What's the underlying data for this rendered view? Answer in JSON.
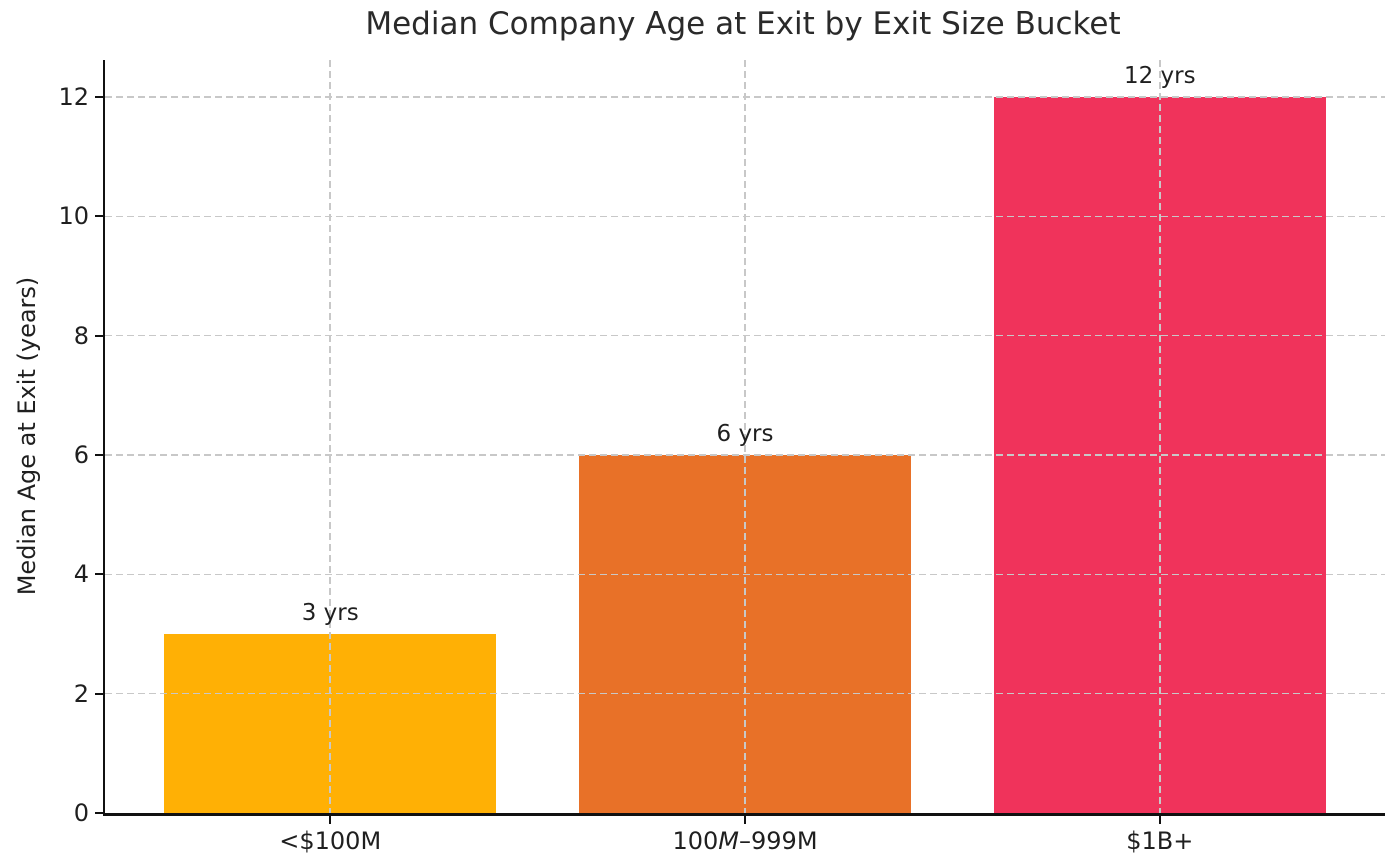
{
  "figure": {
    "background": "#ffffff",
    "text_color": "#1f1f1f",
    "grid_color": "#c8c8c8",
    "spine_color": "#111111"
  },
  "chart_data": {
    "type": "bar",
    "title": "Median Company Age at Exit by Exit Size Bucket",
    "xlabel": "",
    "ylabel": "Median Age at Exit (years)",
    "categories": [
      "<$100M",
      "100M–999M",
      "$1B+"
    ],
    "categories_segments": [
      [
        {
          "text": "<$100M",
          "italic": false
        }
      ],
      [
        {
          "text": "100",
          "italic": false
        },
        {
          "text": "M",
          "italic": true
        },
        {
          "text": "–999M",
          "italic": false
        }
      ],
      [
        {
          "text": "$1B+",
          "italic": false
        }
      ]
    ],
    "values": [
      3,
      6,
      12
    ],
    "bar_labels": [
      "3 yrs",
      "6 yrs",
      "12 yrs"
    ],
    "bar_colors": [
      "#FFB005",
      "#E87128",
      "#F0335B"
    ],
    "yticks": [
      0,
      2,
      4,
      6,
      8,
      10,
      12
    ],
    "ytick_labels": [
      "0",
      "2",
      "4",
      "6",
      "8",
      "10",
      "12"
    ],
    "ylim": [
      0,
      12.62
    ],
    "xlim": [
      -0.543,
      2.543
    ],
    "bar_width": 0.8,
    "grid": true,
    "grid_style": "dashed",
    "grid_on_top": true,
    "legend": false
  }
}
